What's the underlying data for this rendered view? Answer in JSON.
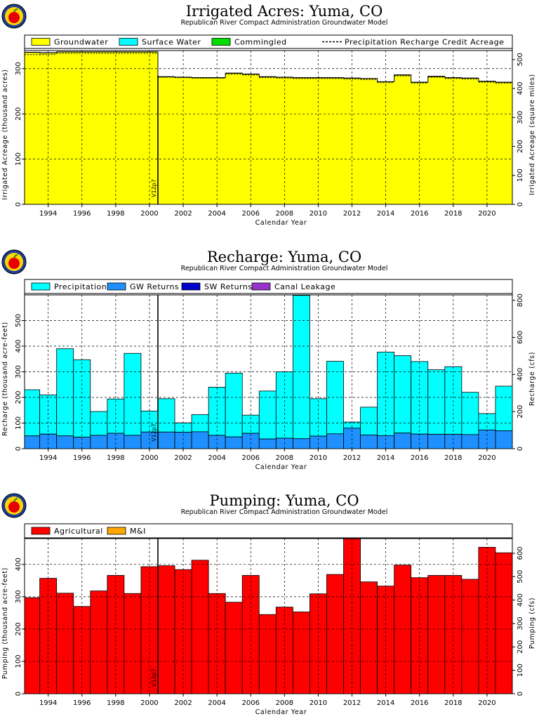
{
  "chart_data": [
    {
      "type": "area",
      "title": "Irrigated Acres: Yuma, CO",
      "subtitle": "Republican River Compact Administration Groundwater Model",
      "xlabel": "Calendar Year",
      "ylabel": "Irrigated Acreage (thousand acres)",
      "y2label": "Irrigated Acreage (square miles)",
      "xlim": [
        1992.6,
        2021.5
      ],
      "ylim": [
        0,
        340
      ],
      "y2lim": [
        0,
        531
      ],
      "yticks": [
        0,
        100,
        200,
        300
      ],
      "y2ticks": [
        0,
        100,
        200,
        300,
        400,
        500
      ],
      "xticks": [
        "1994",
        "1996",
        "1998",
        "2000",
        "2002",
        "2004",
        "2006",
        "2008",
        "2010",
        "2012",
        "2014",
        "2016",
        "2018",
        "2020"
      ],
      "legend": [
        "Groundwater",
        "Surface Water",
        "Commingled",
        "Precipitation Recharge Credit Acreage"
      ],
      "colors": {
        "Groundwater": "#ffff00",
        "Surface Water": "#00ffff",
        "Commingled": "#00dd00",
        "Precipitation Recharge Credit Acreage": "#000000"
      },
      "annotation": {
        "label": "V12p7",
        "x": 2000.5
      },
      "x": [
        1993,
        1994,
        1995,
        1996,
        1997,
        1998,
        1999,
        2000,
        2001,
        2002,
        2003,
        2004,
        2005,
        2006,
        2007,
        2008,
        2009,
        2010,
        2011,
        2012,
        2013,
        2014,
        2015,
        2016,
        2017,
        2018,
        2019,
        2020,
        2021
      ],
      "series": [
        {
          "name": "Groundwater",
          "values": [
            336,
            335,
            337,
            337,
            337,
            337,
            337,
            337,
            282,
            281,
            280,
            280,
            290,
            288,
            282,
            281,
            280,
            280,
            280,
            279,
            278,
            271,
            286,
            270,
            283,
            280,
            279,
            272,
            270
          ]
        },
        {
          "name": "Precipitation Recharge Credit Acreage",
          "values": [
            331,
            331,
            334,
            334,
            334,
            334,
            334,
            334,
            281,
            280,
            279,
            279,
            288,
            286,
            280,
            279,
            278,
            278,
            278,
            277,
            276,
            269,
            284,
            268,
            281,
            278,
            277,
            270,
            268
          ]
        }
      ]
    },
    {
      "type": "bar",
      "title": "Recharge: Yuma, CO",
      "subtitle": "Republican River Compact Administration Groundwater Model",
      "xlabel": "Calendar Year",
      "ylabel": "Recharge (thousand acre-feet)",
      "y2label": "Recharge (cfs)",
      "xlim": [
        1992.6,
        2021.5
      ],
      "ylim": [
        0,
        600
      ],
      "y2lim": [
        0,
        829
      ],
      "yticks": [
        0,
        100,
        200,
        300,
        400,
        500
      ],
      "y2ticks": [
        0,
        200,
        400,
        600,
        800
      ],
      "xticks": [
        "1994",
        "1996",
        "1998",
        "2000",
        "2002",
        "2004",
        "2006",
        "2008",
        "2010",
        "2012",
        "2014",
        "2016",
        "2018",
        "2020"
      ],
      "legend": [
        "Precipitation",
        "GW Returns",
        "SW Returns",
        "Canal Leakage"
      ],
      "colors": {
        "Precipitation": "#00ffff",
        "GW Returns": "#1e90ff",
        "SW Returns": "#0000cd",
        "Canal Leakage": "#9932cc"
      },
      "annotation": {
        "label": "V12p7",
        "x": 2000.5
      },
      "x": [
        1993,
        1994,
        1995,
        1996,
        1997,
        1998,
        1999,
        2000,
        2001,
        2002,
        2003,
        2004,
        2005,
        2006,
        2007,
        2008,
        2009,
        2010,
        2011,
        2012,
        2013,
        2014,
        2015,
        2016,
        2017,
        2018,
        2019,
        2020,
        2021
      ],
      "series": [
        {
          "name": "GW Returns",
          "values": [
            50,
            57,
            50,
            45,
            52,
            60,
            52,
            65,
            65,
            64,
            66,
            52,
            46,
            60,
            38,
            41,
            39,
            49,
            58,
            80,
            53,
            51,
            61,
            57,
            56,
            56,
            55,
            73,
            70
          ]
        },
        {
          "name": "Total Recharge",
          "values": [
            230,
            210,
            390,
            347,
            145,
            194,
            372,
            147,
            195,
            101,
            133,
            240,
            295,
            131,
            225,
            300,
            598,
            195,
            341,
            104,
            162,
            377,
            363,
            340,
            308,
            320,
            220,
            137,
            244
          ]
        }
      ]
    },
    {
      "type": "bar",
      "title": "Pumping: Yuma, CO",
      "subtitle": "Republican River Compact Administration Groundwater Model",
      "xlabel": "Calendar Year",
      "ylabel": "Pumping (thousand acre-feet)",
      "y2label": "Pumping (cfs)",
      "xlim": [
        1992.6,
        2021.5
      ],
      "ylim": [
        0,
        480
      ],
      "y2lim": [
        0,
        663
      ],
      "yticks": [
        0,
        100,
        200,
        300,
        400
      ],
      "y2ticks": [
        0,
        100,
        200,
        300,
        400,
        500,
        600
      ],
      "xticks": [
        "1994",
        "1996",
        "1998",
        "2000",
        "2002",
        "2004",
        "2006",
        "2008",
        "2010",
        "2012",
        "2014",
        "2016",
        "2018",
        "2020"
      ],
      "legend": [
        "Agricultural",
        "M&I"
      ],
      "colors": {
        "Agricultural": "#ff0000",
        "M&I": "#ffa500"
      },
      "annotation": {
        "label": "V12p7",
        "x": 2000.5
      },
      "x": [
        1993,
        1994,
        1995,
        1996,
        1997,
        1998,
        1999,
        2000,
        2001,
        2002,
        2003,
        2004,
        2005,
        2006,
        2007,
        2008,
        2009,
        2010,
        2011,
        2012,
        2013,
        2014,
        2015,
        2016,
        2017,
        2018,
        2019,
        2020,
        2021
      ],
      "series": [
        {
          "name": "Agricultural",
          "values": [
            297,
            357,
            311,
            270,
            318,
            366,
            310,
            393,
            396,
            384,
            413,
            310,
            283,
            366,
            245,
            268,
            253,
            309,
            369,
            480,
            346,
            333,
            398,
            359,
            366,
            366,
            354,
            453,
            436
          ]
        }
      ]
    }
  ]
}
